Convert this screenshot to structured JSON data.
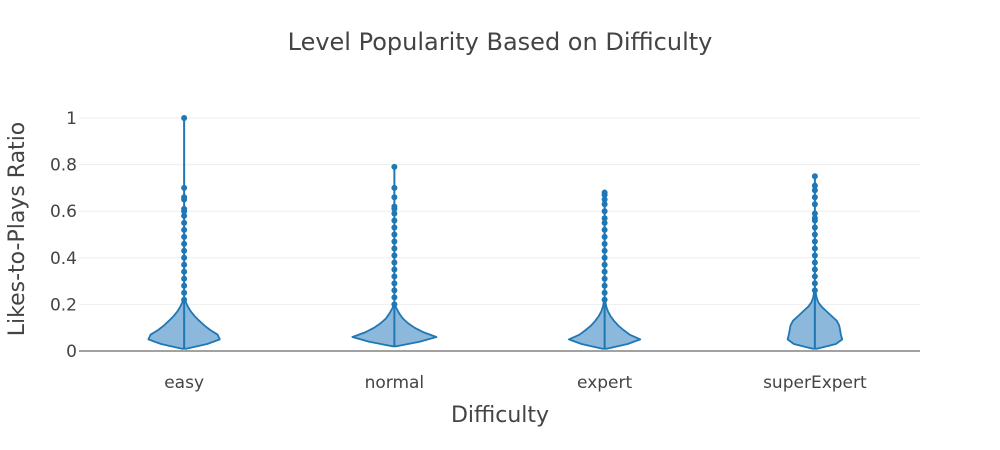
{
  "chart_data": {
    "type": "violin",
    "title": "Level Popularity Based on Difficulty",
    "xlabel": "Difficulty",
    "ylabel": "Likes-to-Plays Ratio",
    "categories": [
      "easy",
      "normal",
      "expert",
      "superExpert"
    ],
    "ylim": [
      0,
      1
    ],
    "yticks": [
      0,
      0.2,
      0.4,
      0.6,
      0.8,
      1
    ],
    "ytick_labels": [
      "0",
      "0.2",
      "0.4",
      "0.6",
      "0.8",
      "1"
    ],
    "grid": true,
    "colors": {
      "fill": "#8cb9db",
      "line": "#1f77b4"
    },
    "series": [
      {
        "category": "easy",
        "whisker": [
          0.01,
          0.21
        ],
        "max": 1.0,
        "density": [
          [
            0.01,
            0.05
          ],
          [
            0.03,
            0.55
          ],
          [
            0.05,
            0.85
          ],
          [
            0.07,
            0.8
          ],
          [
            0.09,
            0.62
          ],
          [
            0.11,
            0.48
          ],
          [
            0.13,
            0.36
          ],
          [
            0.15,
            0.25
          ],
          [
            0.17,
            0.16
          ],
          [
            0.19,
            0.09
          ],
          [
            0.21,
            0.04
          ]
        ],
        "outliers": [
          0.22,
          0.25,
          0.28,
          0.31,
          0.34,
          0.37,
          0.4,
          0.43,
          0.46,
          0.49,
          0.52,
          0.55,
          0.58,
          0.6,
          0.61,
          0.65,
          0.66,
          0.7,
          1.0
        ]
      },
      {
        "category": "normal",
        "whisker": [
          0.02,
          0.19
        ],
        "max": 0.79,
        "density": [
          [
            0.02,
            0.05
          ],
          [
            0.04,
            0.6
          ],
          [
            0.06,
            1.0
          ],
          [
            0.08,
            0.7
          ],
          [
            0.1,
            0.48
          ],
          [
            0.12,
            0.32
          ],
          [
            0.14,
            0.2
          ],
          [
            0.16,
            0.12
          ],
          [
            0.18,
            0.06
          ],
          [
            0.19,
            0.03
          ]
        ],
        "outliers": [
          0.2,
          0.23,
          0.26,
          0.29,
          0.32,
          0.35,
          0.38,
          0.41,
          0.44,
          0.47,
          0.5,
          0.53,
          0.56,
          0.59,
          0.61,
          0.62,
          0.66,
          0.7,
          0.79
        ]
      },
      {
        "category": "expert",
        "whisker": [
          0.01,
          0.21
        ],
        "max": 0.68,
        "density": [
          [
            0.01,
            0.05
          ],
          [
            0.03,
            0.55
          ],
          [
            0.05,
            0.85
          ],
          [
            0.07,
            0.6
          ],
          [
            0.09,
            0.45
          ],
          [
            0.11,
            0.32
          ],
          [
            0.13,
            0.22
          ],
          [
            0.15,
            0.14
          ],
          [
            0.17,
            0.08
          ],
          [
            0.19,
            0.04
          ],
          [
            0.21,
            0.02
          ]
        ],
        "outliers": [
          0.22,
          0.25,
          0.28,
          0.31,
          0.34,
          0.37,
          0.4,
          0.43,
          0.46,
          0.49,
          0.52,
          0.55,
          0.57,
          0.6,
          0.63,
          0.65,
          0.67,
          0.68
        ]
      },
      {
        "category": "superExpert",
        "whisker": [
          0.01,
          0.25
        ],
        "max": 0.75,
        "density": [
          [
            0.01,
            0.05
          ],
          [
            0.03,
            0.5
          ],
          [
            0.05,
            0.65
          ],
          [
            0.07,
            0.62
          ],
          [
            0.09,
            0.6
          ],
          [
            0.11,
            0.58
          ],
          [
            0.13,
            0.52
          ],
          [
            0.15,
            0.4
          ],
          [
            0.17,
            0.28
          ],
          [
            0.19,
            0.16
          ],
          [
            0.21,
            0.08
          ],
          [
            0.23,
            0.04
          ],
          [
            0.25,
            0.02
          ]
        ],
        "outliers": [
          0.26,
          0.29,
          0.32,
          0.35,
          0.38,
          0.41,
          0.44,
          0.47,
          0.5,
          0.53,
          0.56,
          0.57,
          0.59,
          0.63,
          0.66,
          0.69,
          0.71,
          0.75
        ]
      }
    ]
  }
}
